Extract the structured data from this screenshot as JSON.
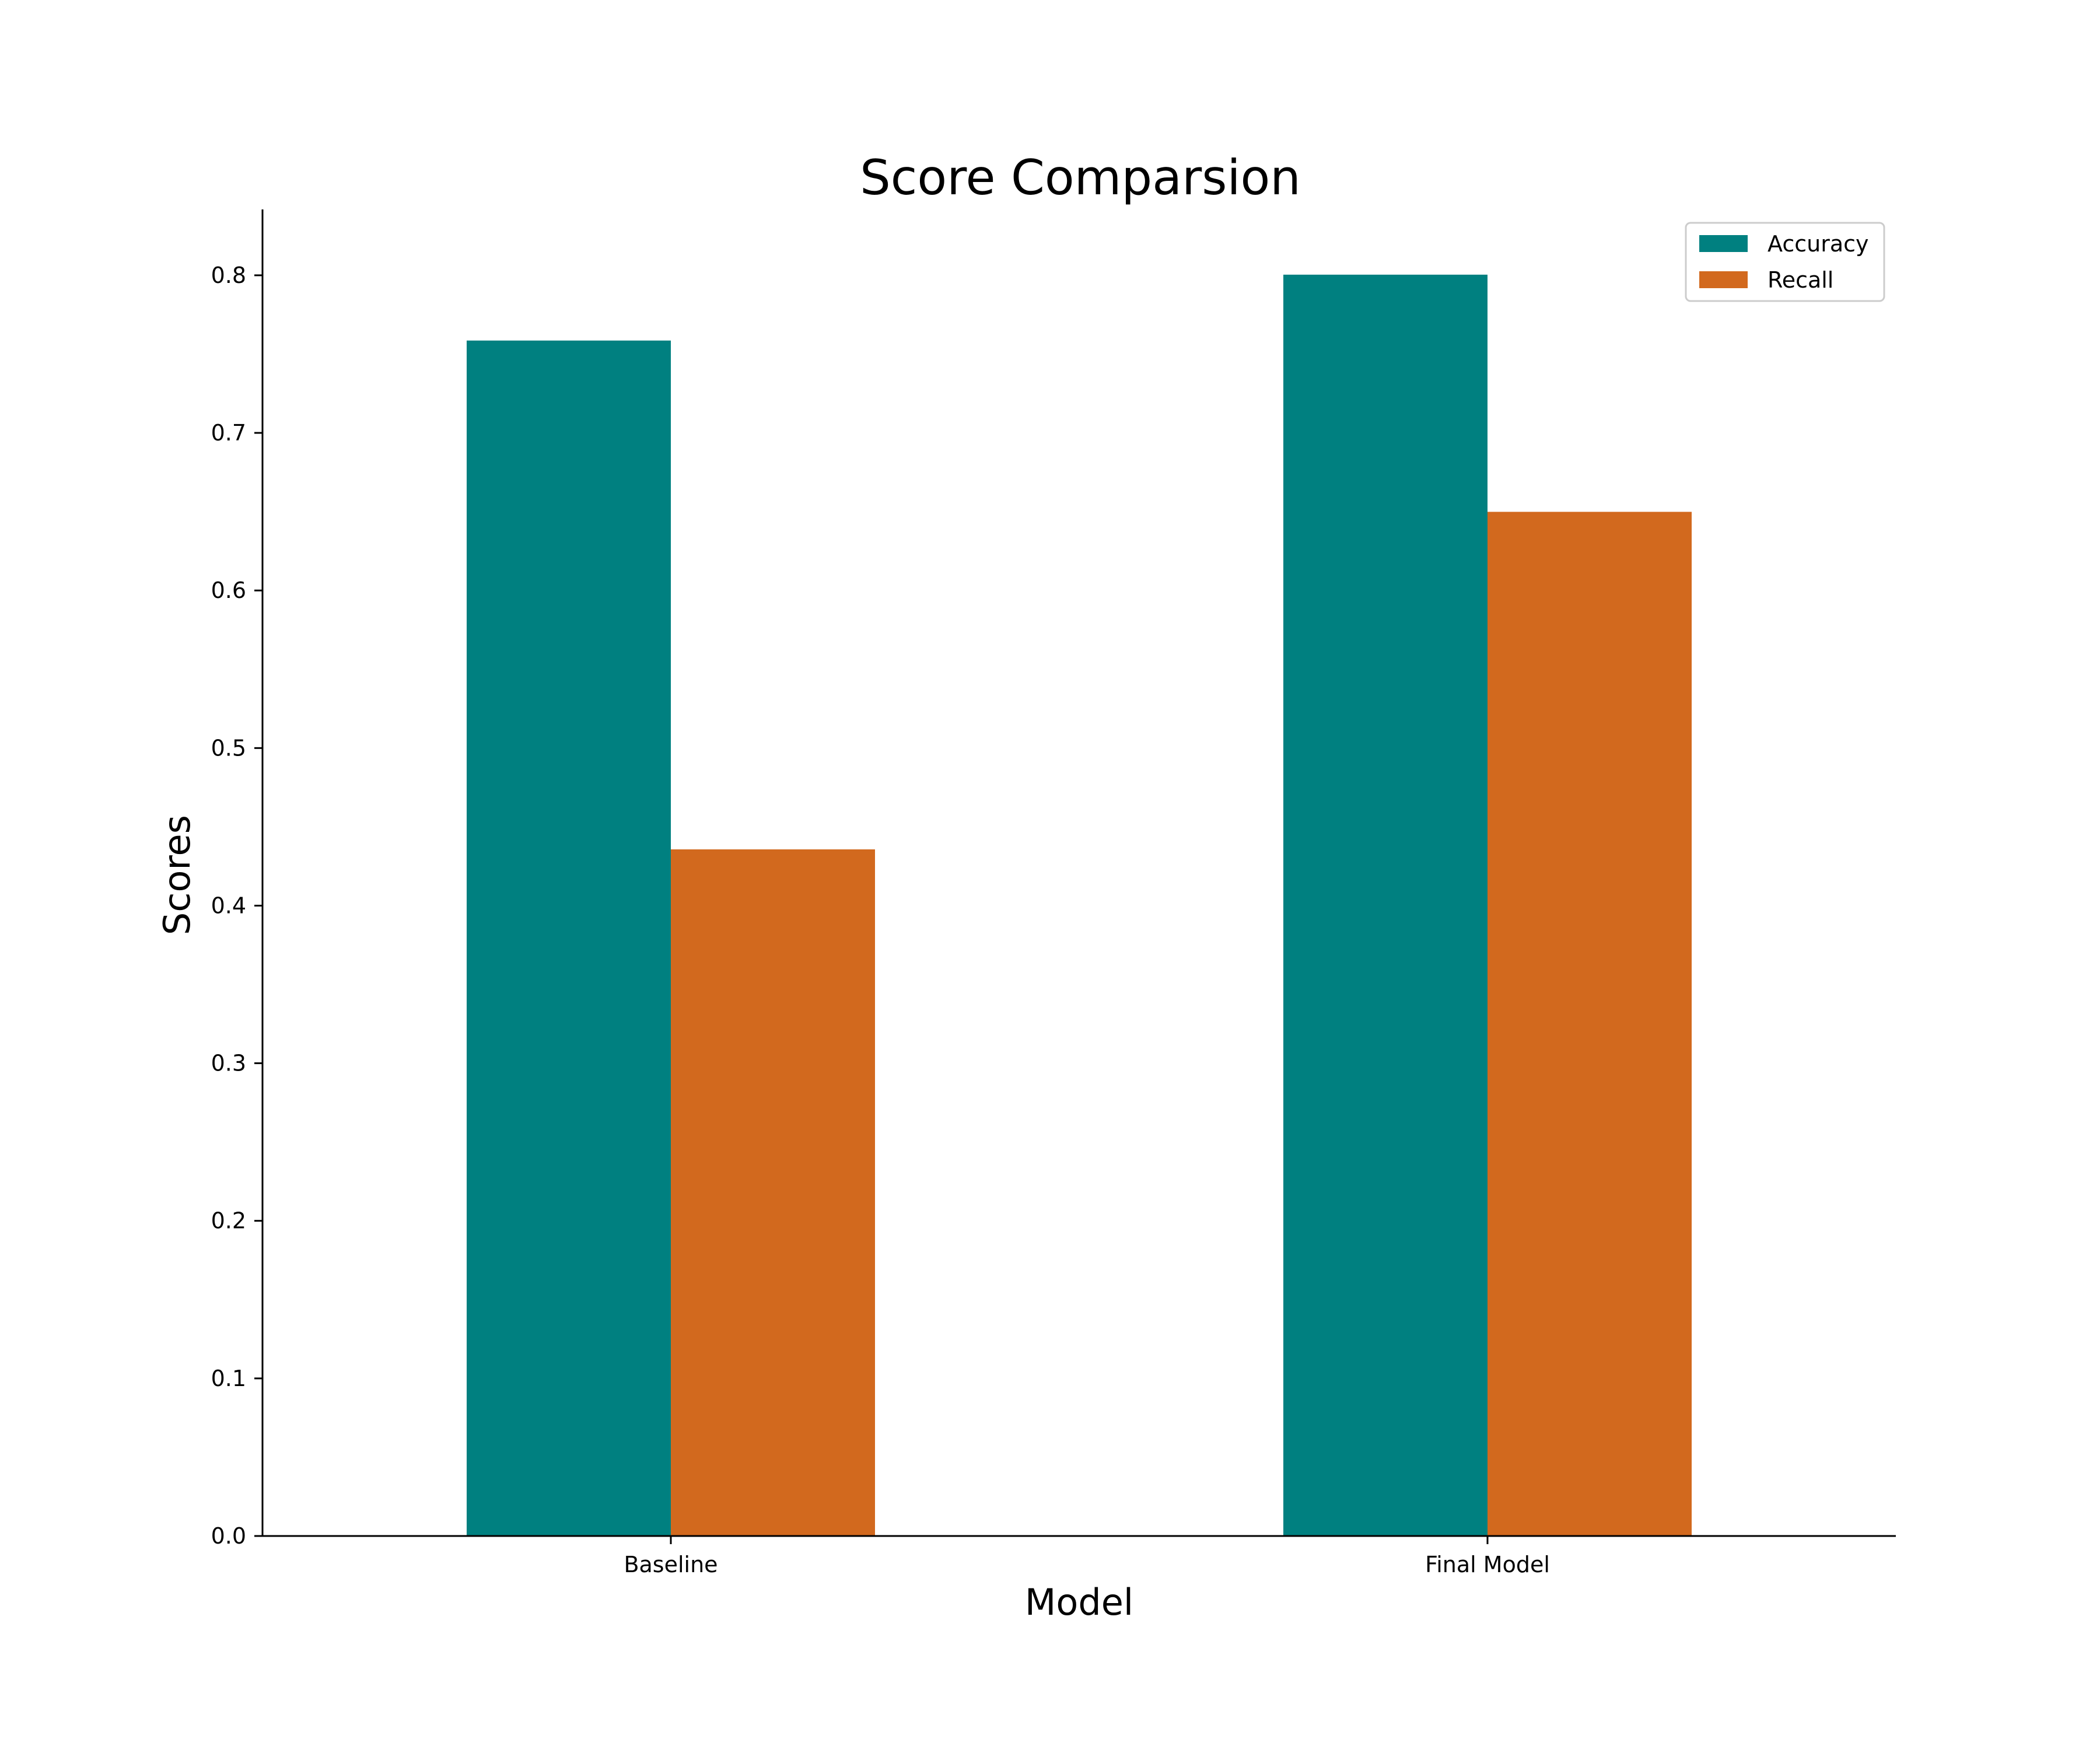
{
  "chart_data": {
    "type": "bar",
    "title": "Score Comparsion",
    "xlabel": "Model",
    "ylabel": "Scores",
    "categories": [
      "Baseline",
      "Final Model"
    ],
    "series": [
      {
        "name": "Accuracy",
        "values": [
          0.7586,
          0.8004
        ],
        "color": "#008080"
      },
      {
        "name": "Recall",
        "values": [
          0.4357,
          0.6499
        ],
        "color": "#d2691e"
      }
    ],
    "ylim": [
      0,
      0.8418
    ],
    "yticks": [
      "0.0",
      "0.1",
      "0.2",
      "0.3",
      "0.4",
      "0.5",
      "0.6",
      "0.7",
      "0.8"
    ],
    "grid": false,
    "legend": "top-right"
  }
}
